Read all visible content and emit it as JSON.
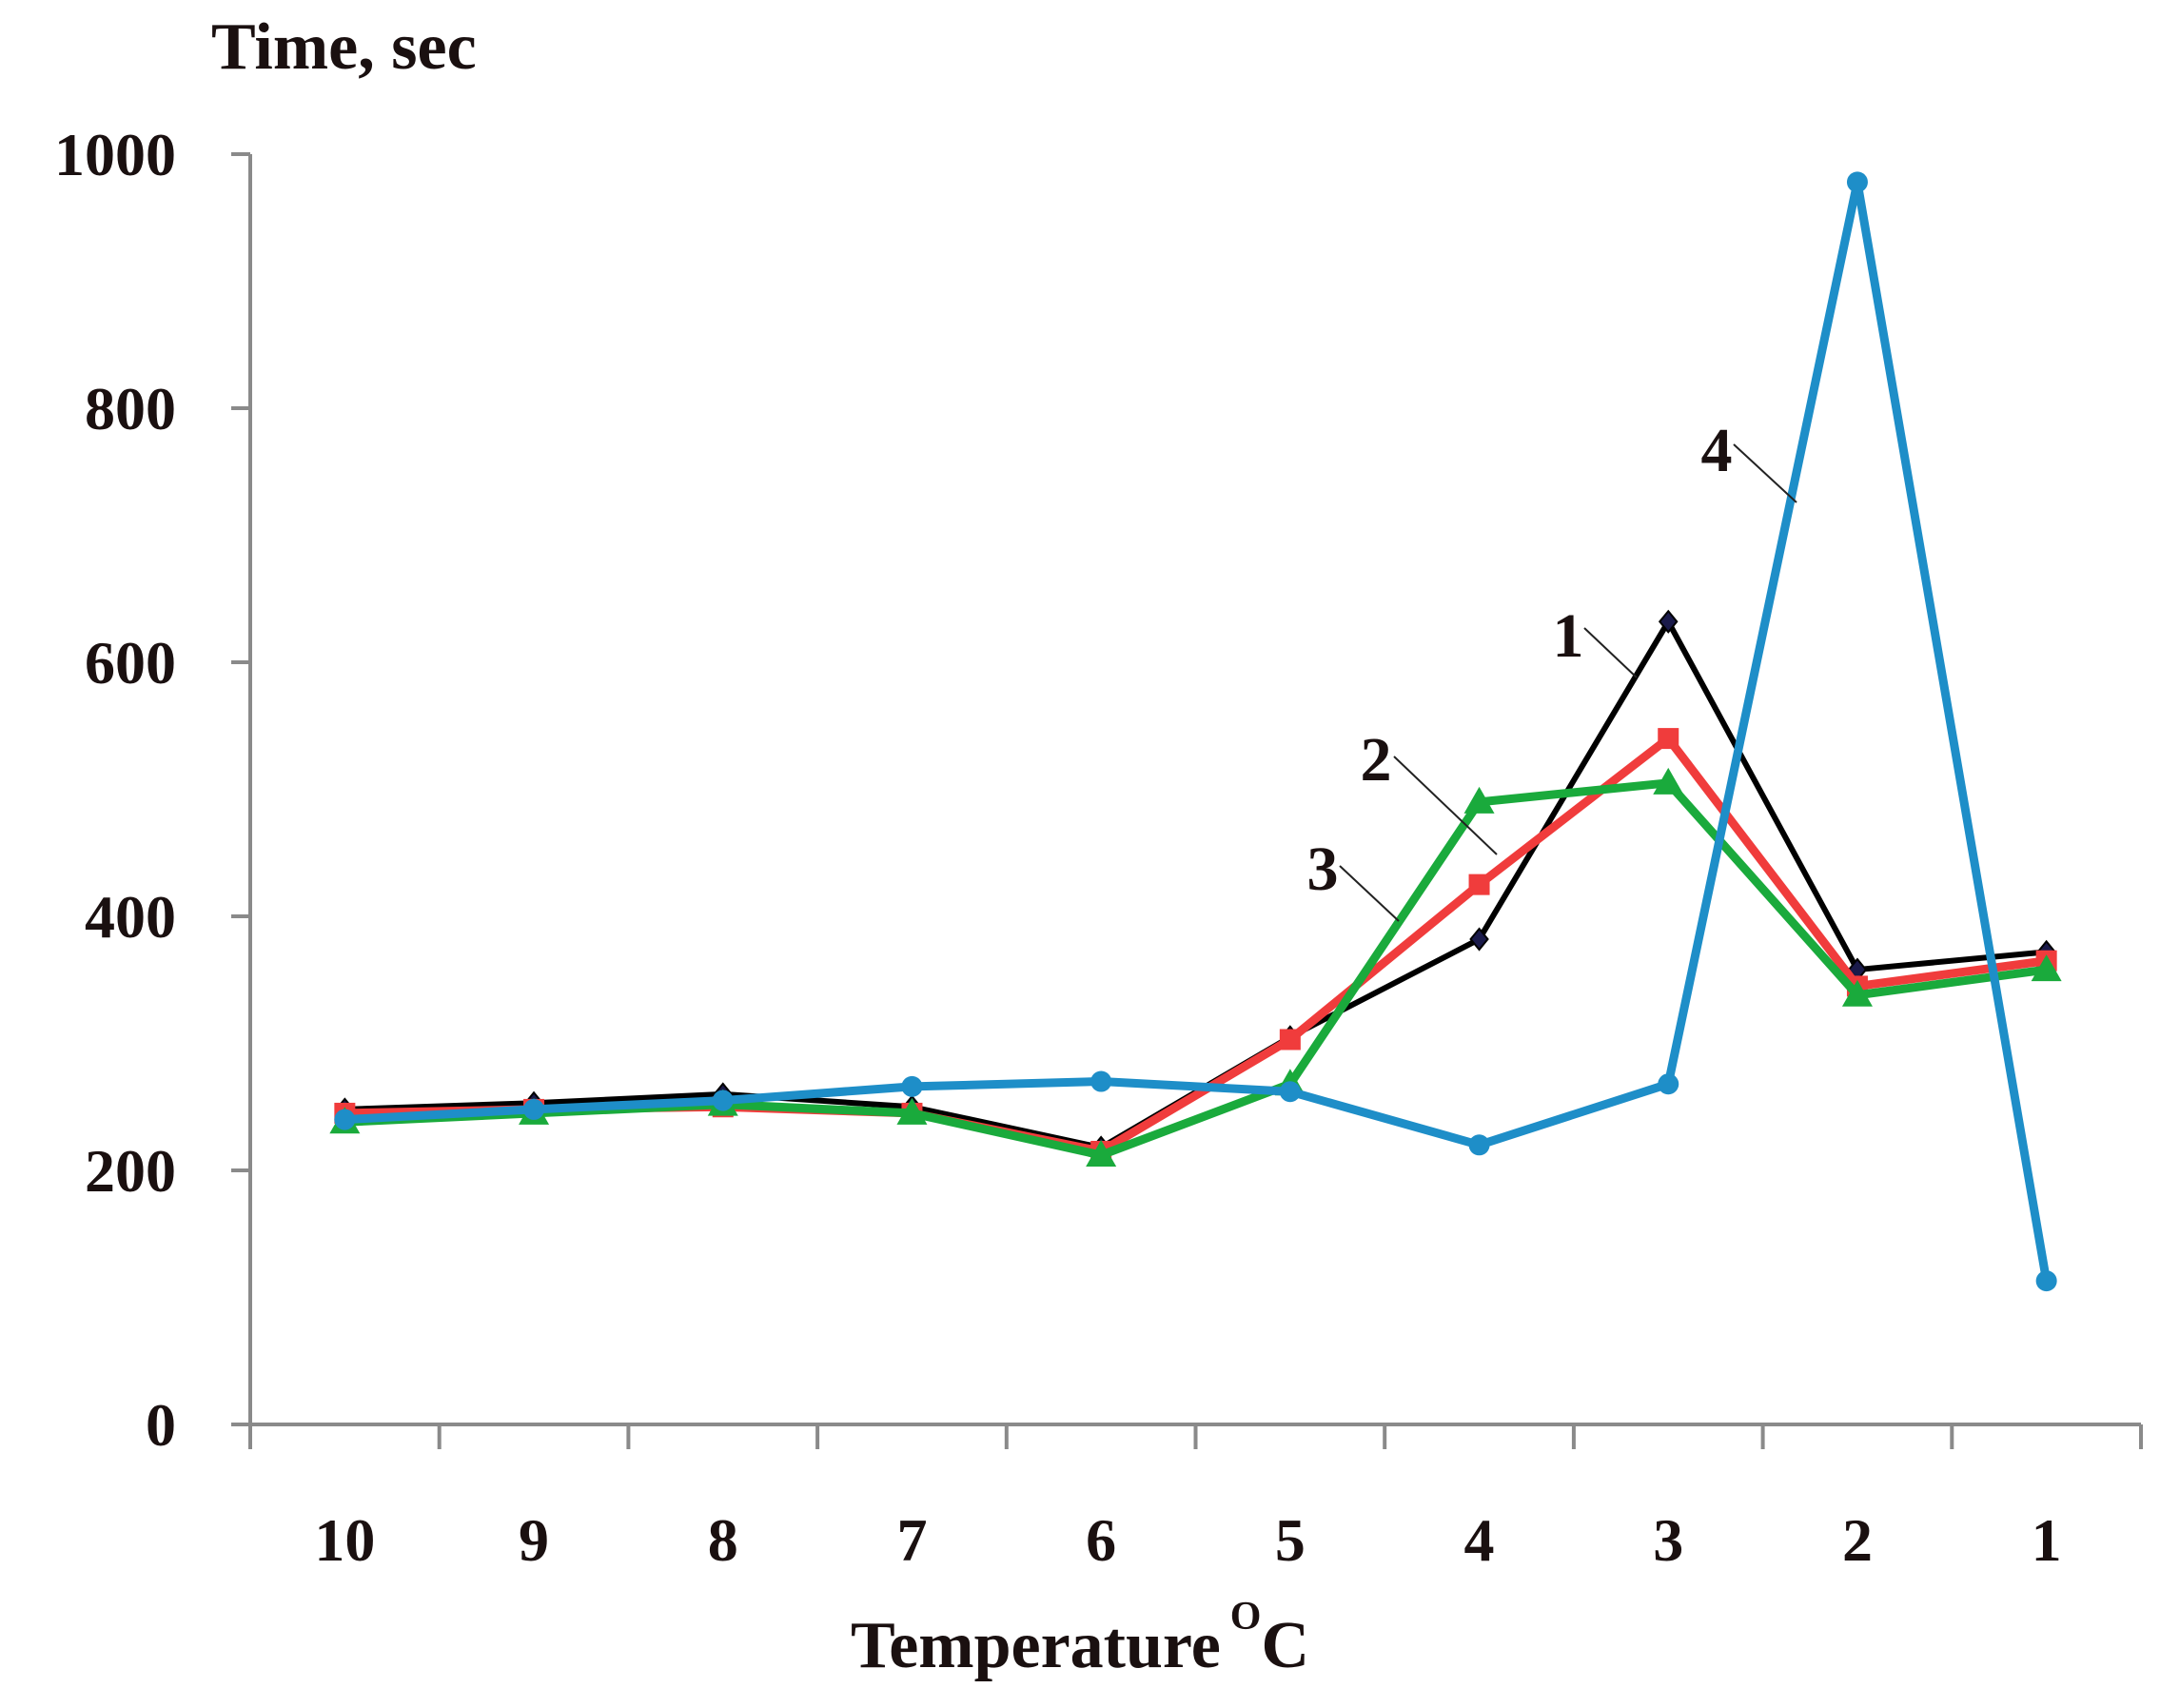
{
  "chart_data": {
    "type": "line",
    "ylabel": "Time, sec",
    "xlabel_main": "Temperature",
    "xlabel_sup": "O",
    "xlabel_unit": "C",
    "categories": [
      "10",
      "9",
      "8",
      "7",
      "6",
      "5",
      "4",
      "3",
      "2",
      "1"
    ],
    "ylim": [
      0,
      1000
    ],
    "yticks": [
      "0",
      "200",
      "400",
      "600",
      "800",
      "1000"
    ],
    "ytick_values": [
      0,
      200,
      400,
      600,
      800,
      1000
    ],
    "series": [
      {
        "name": "1",
        "color": "#000000",
        "marker": "diamond",
        "values": [
          248,
          253,
          260,
          250,
          218,
          305,
          382,
          632,
          358,
          372
        ]
      },
      {
        "name": "2",
        "color": "#f03c3c",
        "marker": "square",
        "values": [
          245,
          248,
          250,
          245,
          215,
          303,
          425,
          540,
          345,
          365
        ]
      },
      {
        "name": "3",
        "color": "#1aaa3c",
        "marker": "triangle",
        "values": [
          238,
          245,
          252,
          245,
          212,
          268,
          490,
          505,
          338,
          358
        ]
      },
      {
        "name": "4",
        "color": "#1e8ec8",
        "marker": "circle",
        "values": [
          240,
          248,
          255,
          266,
          270,
          262,
          220,
          268,
          978,
          113
        ]
      }
    ],
    "annotations": [
      "1",
      "2",
      "3",
      "4"
    ]
  }
}
